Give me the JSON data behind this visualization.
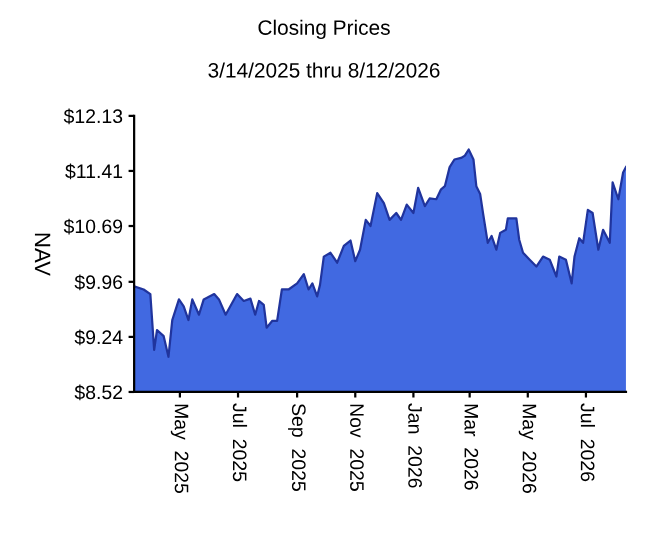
{
  "chart_data": {
    "type": "area",
    "title": "Closing Prices",
    "subtitle": "3/14/2025 thru 8/12/2026",
    "ylabel": "NAV",
    "x": [
      "2025-03-14",
      "2025-03-24",
      "2025-03-31",
      "2025-04-04",
      "2025-04-07",
      "2025-04-14",
      "2025-04-19",
      "2025-04-23",
      "2025-04-30",
      "2025-05-05",
      "2025-05-10",
      "2025-05-14",
      "2025-05-21",
      "2025-05-26",
      "2025-06-06",
      "2025-06-11",
      "2025-06-18",
      "2025-06-30",
      "2025-07-07",
      "2025-07-14",
      "2025-07-19",
      "2025-07-23",
      "2025-07-28",
      "2025-07-31",
      "2025-08-06",
      "2025-08-11",
      "2025-08-16",
      "2025-08-23",
      "2025-09-01",
      "2025-09-08",
      "2025-09-13",
      "2025-09-17",
      "2025-09-22",
      "2025-09-25",
      "2025-09-29",
      "2025-10-06",
      "2025-10-13",
      "2025-10-20",
      "2025-10-27",
      "2025-11-01",
      "2025-11-06",
      "2025-11-12",
      "2025-11-17",
      "2025-11-24",
      "2025-12-01",
      "2025-12-07",
      "2025-12-14",
      "2025-12-19",
      "2025-12-25",
      "2026-01-01",
      "2026-01-06",
      "2026-01-13",
      "2026-01-18",
      "2026-01-25",
      "2026-01-30",
      "2026-02-03",
      "2026-02-08",
      "2026-02-13",
      "2026-02-20",
      "2026-02-24",
      "2026-02-28",
      "2026-03-05",
      "2026-03-08",
      "2026-03-12",
      "2026-03-15",
      "2026-03-20",
      "2026-03-24",
      "2026-03-29",
      "2026-04-02",
      "2026-04-08",
      "2026-04-10",
      "2026-04-19",
      "2026-04-22",
      "2026-04-26",
      "2026-05-03",
      "2026-05-10",
      "2026-05-17",
      "2026-05-24",
      "2026-05-31",
      "2026-06-03",
      "2026-06-10",
      "2026-06-16",
      "2026-06-19",
      "2026-06-24",
      "2026-06-28",
      "2026-07-03",
      "2026-07-08",
      "2026-07-14",
      "2026-07-19",
      "2026-07-26",
      "2026-07-29",
      "2026-08-04",
      "2026-08-09",
      "2026-08-12"
    ],
    "series": [
      {
        "color": "#4169e1",
        "values": [
          9.9,
          9.86,
          9.8,
          9.07,
          9.33,
          9.25,
          8.98,
          9.46,
          9.73,
          9.64,
          9.46,
          9.73,
          9.53,
          9.73,
          9.8,
          9.73,
          9.53,
          9.8,
          9.71,
          9.74,
          9.53,
          9.71,
          9.66,
          9.36,
          9.45,
          9.45,
          9.86,
          9.86,
          9.94,
          10.06,
          9.86,
          9.94,
          9.77,
          9.92,
          10.29,
          10.34,
          10.21,
          10.43,
          10.5,
          10.23,
          10.38,
          10.77,
          10.69,
          11.12,
          10.99,
          10.77,
          10.86,
          10.77,
          10.97,
          10.86,
          11.19,
          10.95,
          11.05,
          11.04,
          11.17,
          11.21,
          11.46,
          11.56,
          11.58,
          11.61,
          11.69,
          11.56,
          11.21,
          11.11,
          10.86,
          10.47,
          10.56,
          10.38,
          10.6,
          10.64,
          10.79,
          10.79,
          10.51,
          10.34,
          10.25,
          10.16,
          10.29,
          10.25,
          10.03,
          10.29,
          10.25,
          9.94,
          10.29,
          10.53,
          10.47,
          10.9,
          10.86,
          10.38,
          10.64,
          10.47,
          11.26,
          11.04,
          11.39,
          11.46
        ]
      }
    ],
    "xlim": [
      "2025-03-14",
      "2026-08-12"
    ],
    "xticks": [
      {
        "value": "2025-05-01",
        "label": "May  2025"
      },
      {
        "value": "2025-07-01",
        "label": "Jul  2025"
      },
      {
        "value": "2025-09-01",
        "label": "Sep  2025"
      },
      {
        "value": "2025-11-01",
        "label": "Nov  2025"
      },
      {
        "value": "2026-01-01",
        "label": "Jan  2026"
      },
      {
        "value": "2026-03-01",
        "label": "Mar  2026"
      },
      {
        "value": "2026-05-01",
        "label": "May  2026"
      },
      {
        "value": "2026-07-01",
        "label": "Jul  2026"
      }
    ],
    "ylim": [
      8.52,
      12.13
    ],
    "yticks": [
      {
        "value": 8.52,
        "label": "$8.52"
      },
      {
        "value": 9.24,
        "label": "$9.24"
      },
      {
        "value": 9.96,
        "label": "$9.96"
      },
      {
        "value": 10.69,
        "label": "$10.69"
      },
      {
        "value": 11.41,
        "label": "$11.41"
      },
      {
        "value": 12.13,
        "label": "$12.13"
      }
    ],
    "grid": false,
    "legend": false
  }
}
